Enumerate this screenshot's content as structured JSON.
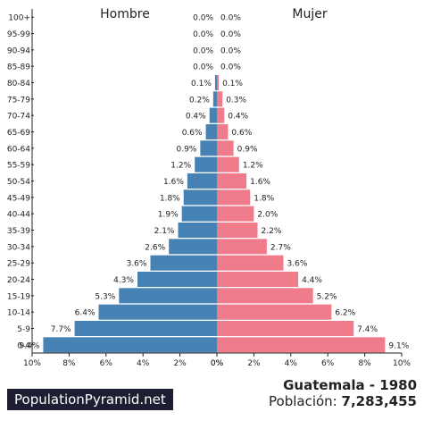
{
  "chart_data": {
    "type": "bar",
    "orientation": "horizontal-population-pyramid",
    "left_label": "Hombre",
    "right_label": "Mujer",
    "categories": [
      "0-4",
      "5-9",
      "10-14",
      "15-19",
      "20-24",
      "25-29",
      "30-34",
      "35-39",
      "40-44",
      "45-49",
      "50-54",
      "55-59",
      "60-64",
      "65-69",
      "70-74",
      "75-79",
      "80-84",
      "85-89",
      "90-94",
      "95-99",
      "100+"
    ],
    "series": [
      {
        "name": "Hombre",
        "color": "#4682b4",
        "values": [
          9.4,
          7.7,
          6.4,
          5.3,
          4.3,
          3.6,
          2.6,
          2.1,
          1.9,
          1.8,
          1.6,
          1.2,
          0.9,
          0.6,
          0.4,
          0.2,
          0.1,
          0.0,
          0.0,
          0.0,
          0.0
        ]
      },
      {
        "name": "Mujer",
        "color": "#f07b8a",
        "values": [
          9.1,
          7.4,
          6.2,
          5.2,
          4.4,
          3.6,
          2.7,
          2.2,
          2.0,
          1.8,
          1.6,
          1.2,
          0.9,
          0.6,
          0.4,
          0.3,
          0.1,
          0.0,
          0.0,
          0.0,
          0.0
        ]
      }
    ],
    "xlim": [
      0,
      10
    ],
    "x_ticks_left": [
      "10%",
      "8%",
      "6%",
      "4%",
      "2%",
      "0%"
    ],
    "x_ticks_right": [
      "0%",
      "2%",
      "4%",
      "6%",
      "8%",
      "10%"
    ],
    "value_suffix": "%"
  },
  "footer": {
    "brand": "PopulationPyramid.net",
    "title": "Guatemala - 1980",
    "population_label": "Población:",
    "population_value": "7,283,455"
  }
}
